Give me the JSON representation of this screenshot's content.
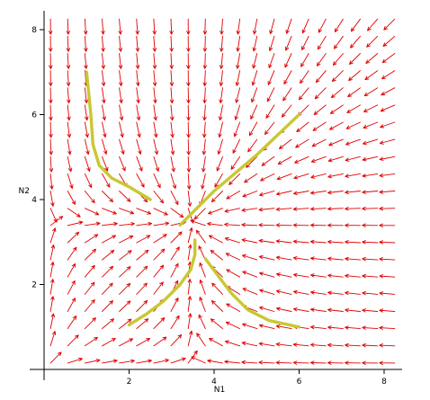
{
  "chart_data": {
    "type": "vector-field",
    "xlabel": "N1",
    "ylabel": "N2",
    "xlim": [
      0,
      8.4
    ],
    "ylim": [
      0,
      8.4
    ],
    "x_ticks": [
      "2",
      "4",
      "6",
      "8"
    ],
    "y_ticks": [
      "2",
      "4",
      "6",
      "8"
    ],
    "arrow_grid": {
      "from": 0.15,
      "to": 8.25,
      "count": 21
    },
    "equilibrium": [
      3.5,
      3.5
    ],
    "arrow_color": "#e00000",
    "trajectory_color": "#c8c832",
    "trajectories": [
      {
        "points": [
          [
            1.0,
            7.0
          ],
          [
            1.1,
            6.0
          ],
          [
            1.15,
            5.3
          ],
          [
            1.3,
            4.8
          ],
          [
            1.6,
            4.5
          ],
          [
            2.0,
            4.3
          ],
          [
            2.5,
            4.0
          ]
        ]
      },
      {
        "points": [
          [
            3.2,
            3.4
          ],
          [
            4.0,
            4.2
          ],
          [
            5.0,
            5.05
          ],
          [
            6.0,
            6.0
          ]
        ]
      },
      {
        "points": [
          [
            3.55,
            3.05
          ],
          [
            3.55,
            2.7
          ],
          [
            3.45,
            2.35
          ],
          [
            3.2,
            2.0
          ],
          [
            2.8,
            1.6
          ],
          [
            2.4,
            1.3
          ],
          [
            2.0,
            1.05
          ]
        ]
      },
      {
        "points": [
          [
            3.8,
            2.6
          ],
          [
            4.1,
            2.2
          ],
          [
            4.4,
            1.8
          ],
          [
            4.8,
            1.4
          ],
          [
            5.3,
            1.15
          ],
          [
            6.0,
            1.0
          ]
        ]
      }
    ]
  }
}
